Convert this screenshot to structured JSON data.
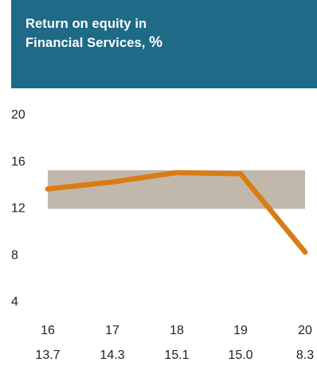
{
  "header": {
    "title_line1": "Return on equity in",
    "title_line2": "Financial Services,",
    "title_unit": "%",
    "background_color": "#1e6a87"
  },
  "chart_data": {
    "type": "line",
    "title": "Return on equity in Financial Services, %",
    "xlabel": "",
    "ylabel": "",
    "categories": [
      "16",
      "17",
      "18",
      "19",
      "20"
    ],
    "series": [
      {
        "values": [
          13.7,
          14.3,
          15.1,
          15.0,
          8.3
        ],
        "color": "#d97c14"
      }
    ],
    "value_labels": [
      "13.7",
      "14.3",
      "15.1",
      "15.0",
      "8.3"
    ],
    "y_ticks": [
      20,
      16,
      12,
      8,
      4
    ],
    "ylim": [
      4,
      20
    ],
    "target_band": {
      "low": 12,
      "high": 15.3,
      "color": "#c1b8ab"
    },
    "grid": false,
    "legend": "none"
  }
}
